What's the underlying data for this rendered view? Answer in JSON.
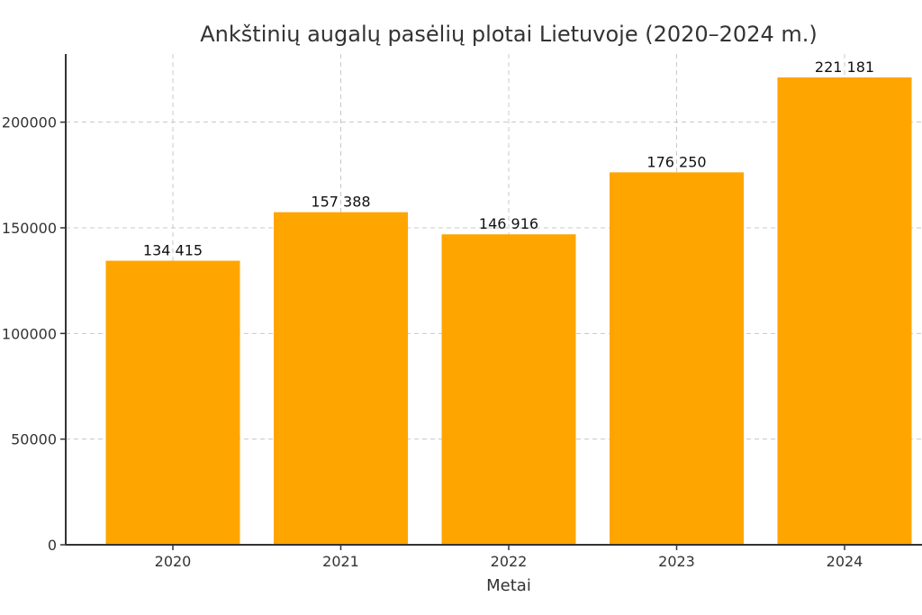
{
  "chart_data": {
    "type": "bar",
    "title": "Ankštinių augalų pasėlių plotai Lietuvoje (2020–2024 m.)",
    "xlabel": "Metai",
    "ylabel": "",
    "categories": [
      "2020",
      "2021",
      "2022",
      "2023",
      "2024"
    ],
    "values": [
      134415,
      157388,
      146916,
      176250,
      221181
    ],
    "value_labels": [
      "134 415",
      "157 388",
      "146 916",
      "176 250",
      "221 181"
    ],
    "y_ticks": [
      0,
      50000,
      100000,
      150000,
      200000
    ],
    "y_tick_labels": [
      "0",
      "50000",
      "100000",
      "150000",
      "200000"
    ],
    "ylim": [
      0,
      232240
    ],
    "grid": true,
    "bar_color": "#FFA500"
  }
}
